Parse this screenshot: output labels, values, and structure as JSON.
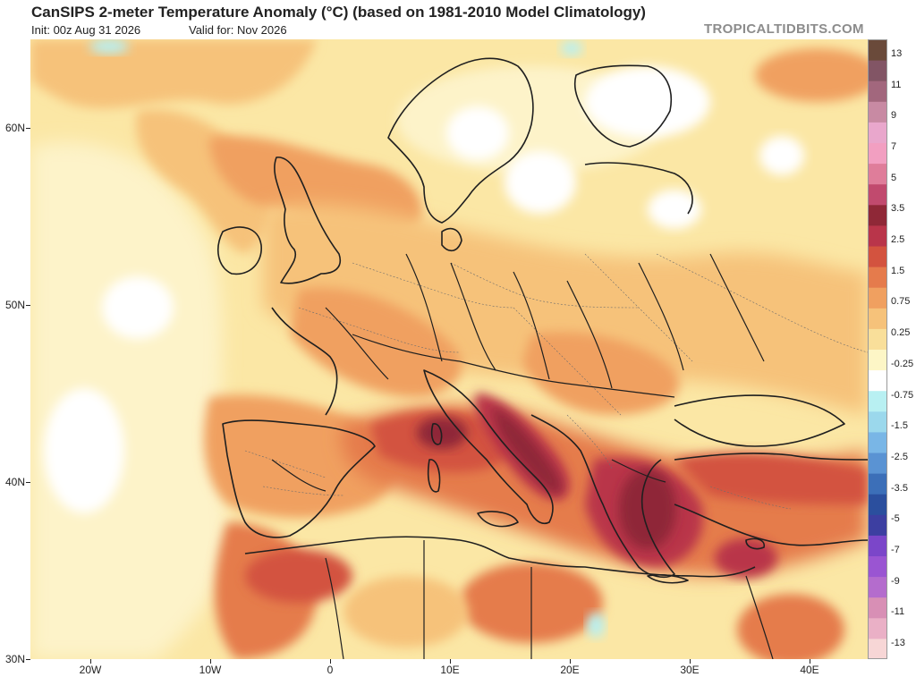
{
  "header": {
    "title": "CanSIPS 2-meter Temperature Anomaly (°C) (based on 1981-2010 Model Climatology)",
    "init": "Init: 00z Aug 31 2026",
    "valid": "Valid for: Nov 2026",
    "brand": "TROPICALTIDBITS.COM"
  },
  "axes": {
    "lat_labels": [
      "60N",
      "50N",
      "40N",
      "30N"
    ],
    "lon_labels": [
      "20W",
      "10W",
      "0",
      "10E",
      "20E",
      "30E",
      "40E"
    ]
  },
  "colorbar": {
    "labels": [
      "13",
      "11",
      "9",
      "7",
      "5",
      "3.5",
      "2.5",
      "1.5",
      "0.75",
      "0.25",
      "-0.25",
      "-0.75",
      "-1.5",
      "-2.5",
      "-3.5",
      "-5",
      "-7",
      "-9",
      "-11",
      "-13"
    ],
    "colors": [
      "#f7d6d6",
      "#eab0c6",
      "#d88fb5",
      "#b46ccd",
      "#9a55d2",
      "#7b46c9",
      "#3d3fa1",
      "#2b4f9e",
      "#3c6fb8",
      "#5a93d3",
      "#79b6e6",
      "#9bd8ec",
      "#b8f0f2",
      "#ffffff",
      "#fdf6c6",
      "#f9df9a",
      "#f6c27a",
      "#f0a060",
      "#e57b4c",
      "#d3533f",
      "#b9354a",
      "#8f2837",
      "#c14a6e",
      "#df7d9a",
      "#f29fc1",
      "#e9a7cc",
      "#c88aa3",
      "#a2677d",
      "#825565",
      "#6a4a3a"
    ]
  },
  "map": {
    "region": "Europe / Mediterranean",
    "palette": {
      "background": "#fbe7a5",
      "ocean_west": "#fdf3c9",
      "warm_light": "#f6c27a",
      "warm_mid": "#f0a060",
      "warm_strong": "#e57b4c",
      "hot": "#d3533f",
      "very_hot": "#b9354a",
      "extreme": "#8f2837",
      "cold_light": "#b8f0f2",
      "neutral": "#ffffff",
      "border": "#1f1f1f",
      "subborder": "#6d6d6d"
    },
    "hotspots": [
      "Tyrrhenian Sea",
      "Adriatic",
      "Greece / Aegean",
      "Eastern Mediterranean"
    ]
  }
}
